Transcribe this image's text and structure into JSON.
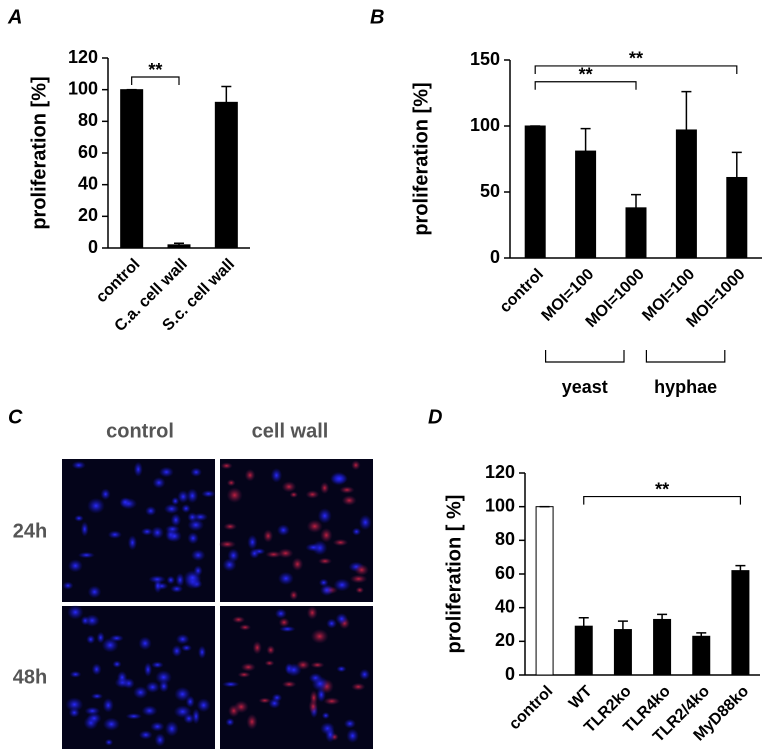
{
  "chart_data": [
    {
      "type": "bar",
      "panel": "A",
      "ylabel": "proliferation [%]",
      "categories": [
        "control",
        "C.a. cell wall",
        "S.c. cell wall"
      ],
      "values": [
        100,
        2,
        92
      ],
      "errors": [
        0,
        1,
        10
      ],
      "colors": [
        "#000000",
        "#000000",
        "#000000"
      ],
      "ylim": [
        0,
        120
      ],
      "yticks": [
        0,
        20,
        40,
        60,
        80,
        100,
        120
      ],
      "annotations": [
        {
          "text": "**",
          "from": 0,
          "to": 1
        }
      ]
    },
    {
      "type": "bar",
      "panel": "B",
      "ylabel": "proliferation [%]",
      "categories": [
        "control",
        "MOI=100",
        "MOI=1000",
        "MOI=100",
        "MOI=1000"
      ],
      "values": [
        100,
        81,
        38,
        97,
        61
      ],
      "errors": [
        0,
        17,
        10,
        29,
        19
      ],
      "colors": [
        "#000000",
        "#000000",
        "#000000",
        "#000000",
        "#000000"
      ],
      "ylim": [
        0,
        150
      ],
      "yticks": [
        0,
        50,
        100,
        150
      ],
      "annotations": [
        {
          "text": "**",
          "from": 0,
          "to": 2
        },
        {
          "text": "**",
          "from": 0,
          "to": 4
        }
      ],
      "groups": [
        {
          "label": "yeast",
          "from": 1,
          "to": 2
        },
        {
          "label": "hyphae",
          "from": 3,
          "to": 4
        }
      ]
    },
    {
      "type": "bar",
      "panel": "D",
      "ylabel": "proliferation [ %]",
      "categories": [
        "control",
        "WT",
        "TLR2ko",
        "TLR4ko",
        "TLR2/4ko",
        "MyD88ko"
      ],
      "values": [
        100,
        29,
        27,
        33,
        23,
        62
      ],
      "errors": [
        0,
        5,
        5,
        3,
        2,
        3
      ],
      "colors": [
        "#ffffff",
        "#000000",
        "#000000",
        "#000000",
        "#000000",
        "#000000"
      ],
      "ylim": [
        0,
        120
      ],
      "yticks": [
        0,
        20,
        40,
        60,
        80,
        100,
        120
      ],
      "annotations": [
        {
          "text": "**",
          "from": 1,
          "to": 5
        }
      ]
    }
  ],
  "panel_c": {
    "panel": "C",
    "columns": [
      "control",
      "cell wall"
    ],
    "rows": [
      "24h",
      "48h"
    ]
  }
}
